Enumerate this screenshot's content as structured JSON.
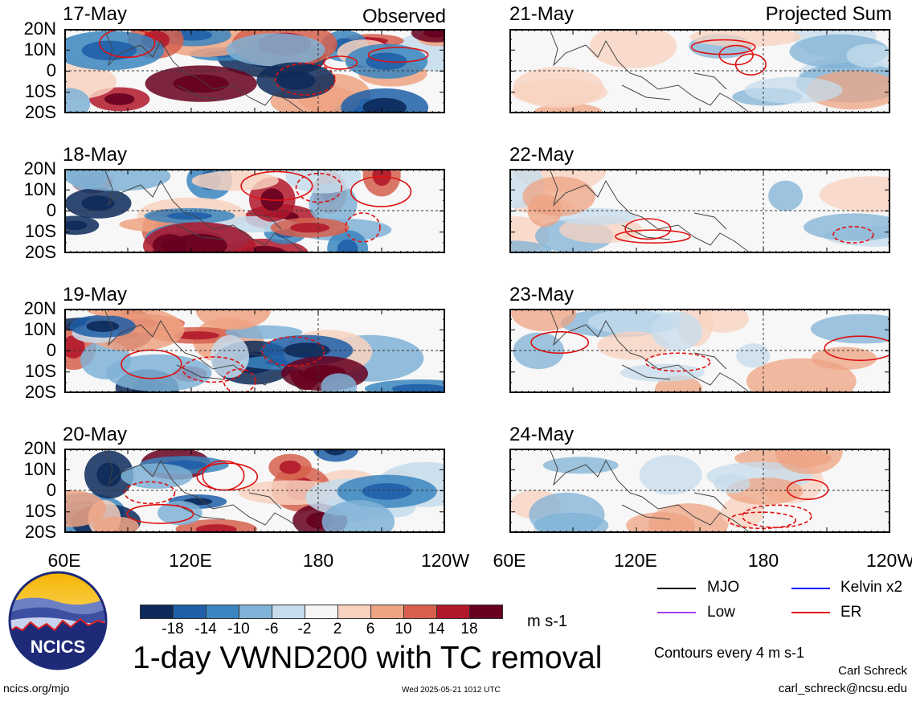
{
  "title": "1-day VWND200 with TC removal",
  "sections": {
    "left": "Observed",
    "right": "Projected Sum"
  },
  "left_dates": [
    "17-May",
    "18-May",
    "19-May",
    "20-May"
  ],
  "right_dates": [
    "21-May",
    "22-May",
    "23-May",
    "24-May"
  ],
  "lat_labels": [
    "20N",
    "10N",
    "0",
    "10S",
    "20S"
  ],
  "lon_labels": [
    "60E",
    "120E",
    "180",
    "120W"
  ],
  "colorbar": {
    "ticks": [
      "-18",
      "-14",
      "-10",
      "-6",
      "-2",
      "2",
      "6",
      "10",
      "14",
      "18"
    ],
    "units": "m s-1",
    "colors": [
      "#0d2a5a",
      "#1f5fa8",
      "#3b86c0",
      "#7fb2d6",
      "#c6dcec",
      "#f6f6f6",
      "#f8d2bf",
      "#eea382",
      "#d6604d",
      "#b2182b",
      "#67001f"
    ]
  },
  "legend": [
    {
      "label": "MJO",
      "color": "#000000"
    },
    {
      "label": "Kelvin x2",
      "color": "#0000ff"
    },
    {
      "label": "Low",
      "color": "#a040e0"
    },
    {
      "label": "ER",
      "color": "#e01010"
    }
  ],
  "contour_note": "Contours every 4 m s-1",
  "logo_text": "NCICS",
  "site": "ncics.org/mjo",
  "timestamp": "Wed 2025-05-21 1012 UTC",
  "author": "Carl Schreck",
  "email": "carl_schreck@ncsu.edu"
}
